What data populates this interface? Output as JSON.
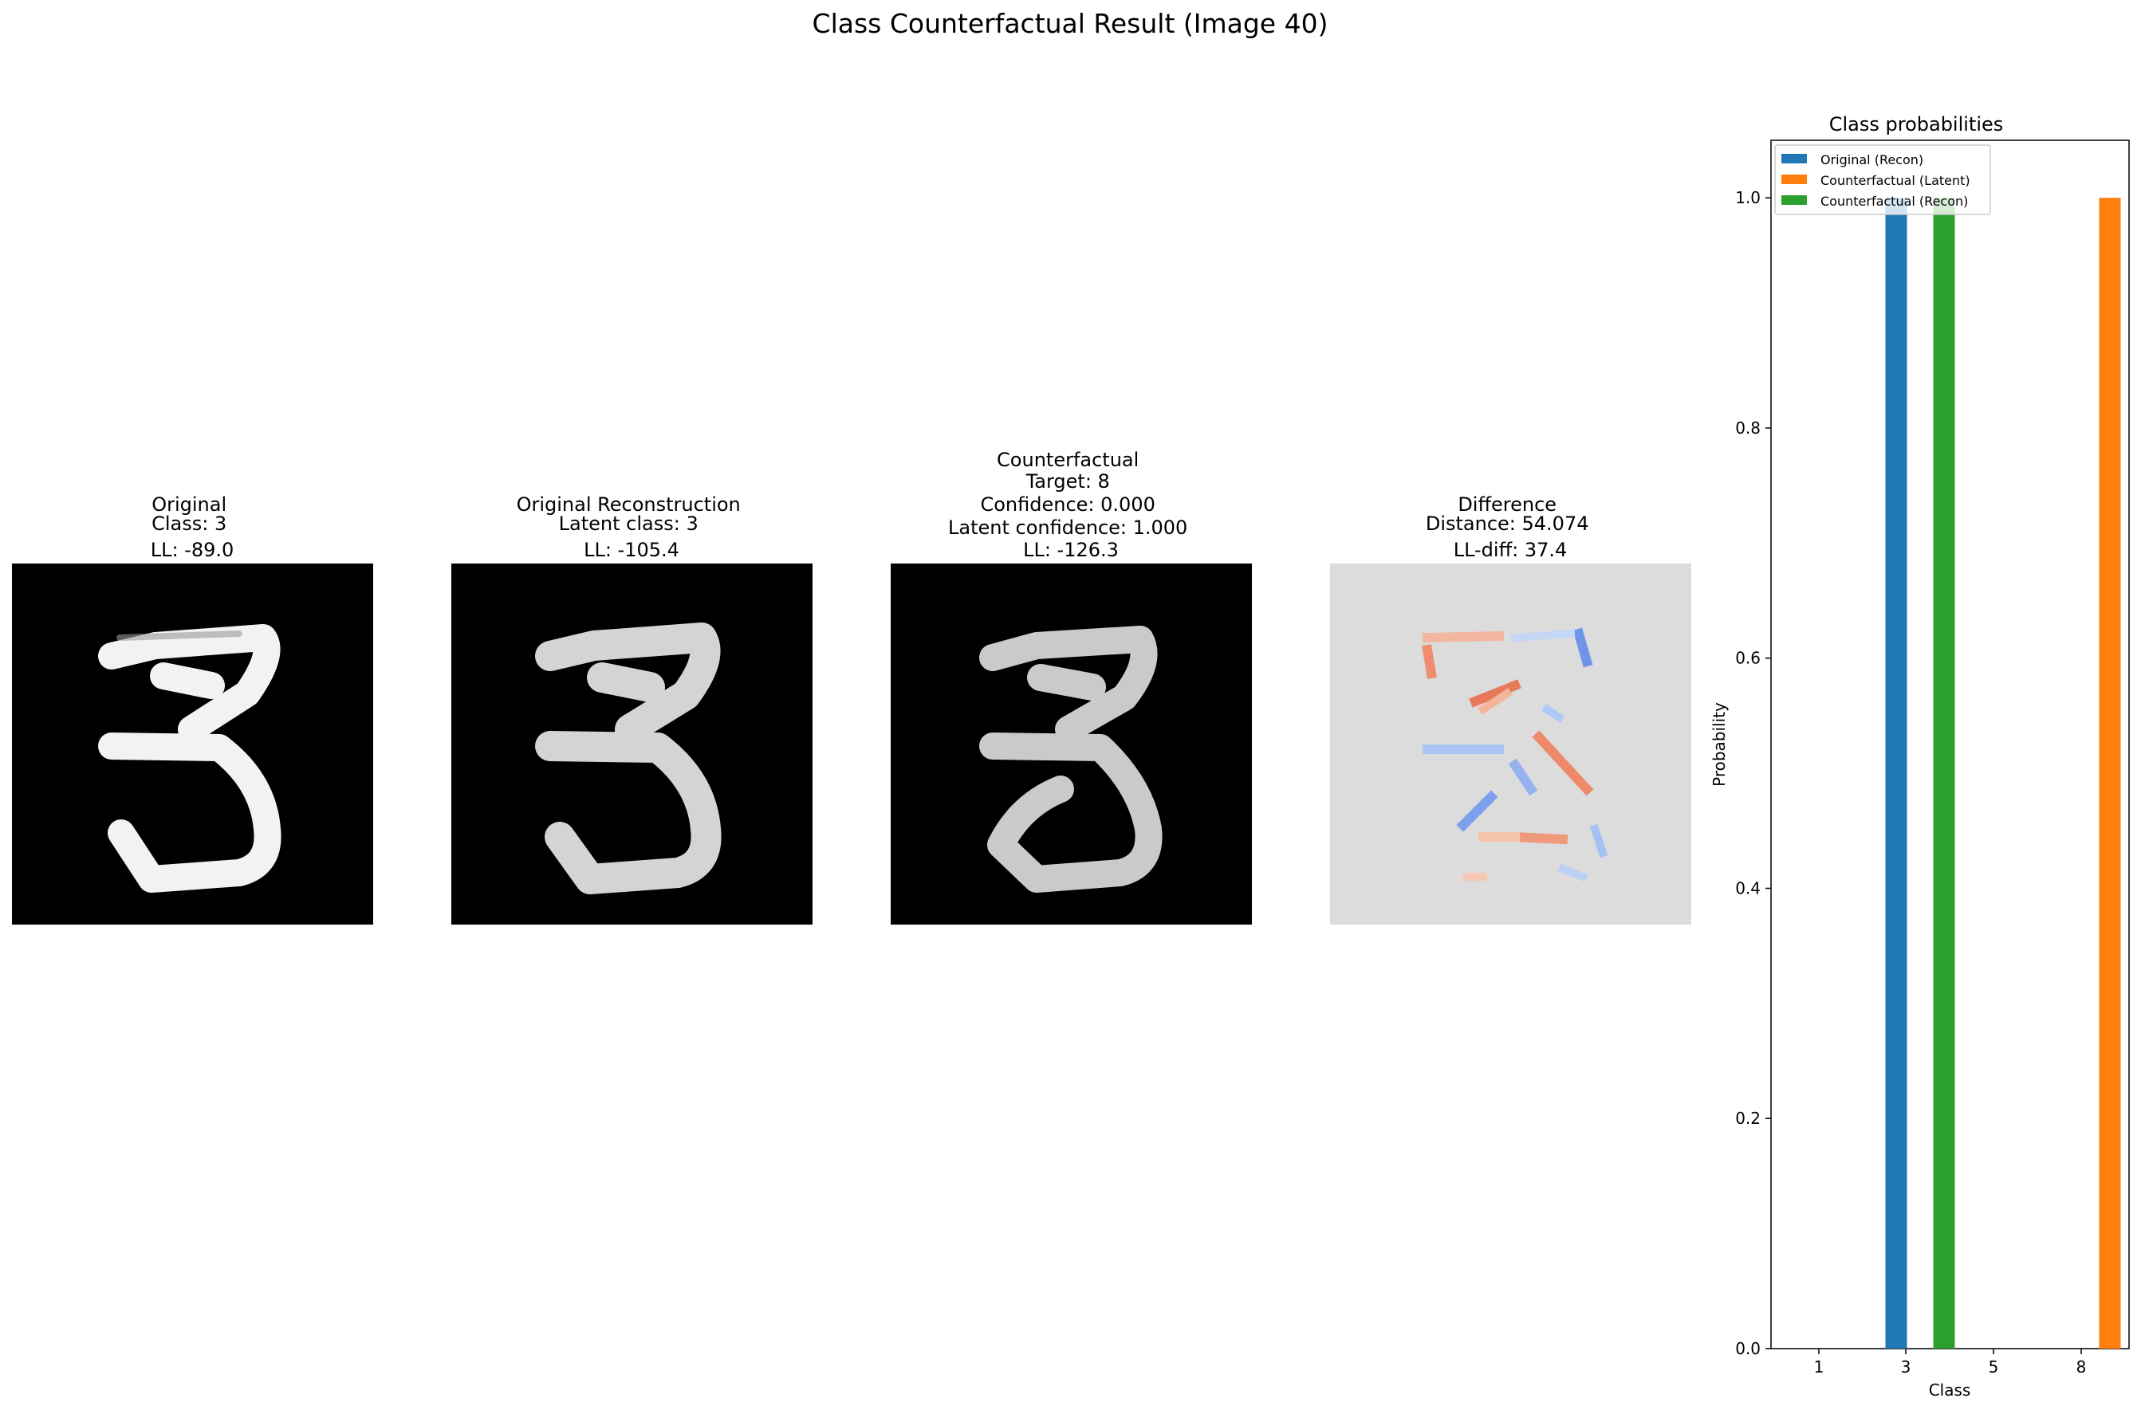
{
  "figure": {
    "title": "Class Counterfactual Result (Image 40)"
  },
  "panels": [
    {
      "id": "original",
      "title_lines": [
        "Original",
        "Class: 3",
        "LL: -89.0"
      ]
    },
    {
      "id": "reconstruction",
      "title_lines": [
        "Original Reconstruction",
        "Latent class: 3",
        "LL: -105.4"
      ]
    },
    {
      "id": "counterfactual",
      "title_lines": [
        "Counterfactual",
        "Target: 8",
        "Confidence: 0.000",
        "Latent confidence: 1.000",
        "LL: -126.3"
      ]
    },
    {
      "id": "difference",
      "title_lines": [
        "Difference",
        "Distance: 54.074",
        "LL-diff: 37.4"
      ]
    }
  ],
  "colors": {
    "original_recon": "#1f77b4",
    "counterfactual_latent": "#ff7f0e",
    "counterfactual_recon": "#2ca02c",
    "difference_bg": "#dddcdc",
    "image_bg": "#000000"
  },
  "chart_data": {
    "type": "bar",
    "title": "Class probabilities",
    "xlabel": "Class",
    "ylabel": "Probability",
    "categories": [
      "1",
      "3",
      "5",
      "8"
    ],
    "series": [
      {
        "name": "Original (Recon)",
        "values": [
          0.0,
          1.0,
          0.0,
          0.0
        ]
      },
      {
        "name": "Counterfactual (Latent)",
        "values": [
          0.0,
          0.0,
          0.0,
          1.0
        ]
      },
      {
        "name": "Counterfactual (Recon)",
        "values": [
          0.0,
          1.0,
          0.0,
          0.0
        ]
      }
    ],
    "ylim": [
      0.0,
      1.05
    ],
    "yticks": [
      "0.0",
      "0.2",
      "0.4",
      "0.6",
      "0.8",
      "1.0"
    ],
    "legend_position": "upper-left",
    "grid": false
  }
}
